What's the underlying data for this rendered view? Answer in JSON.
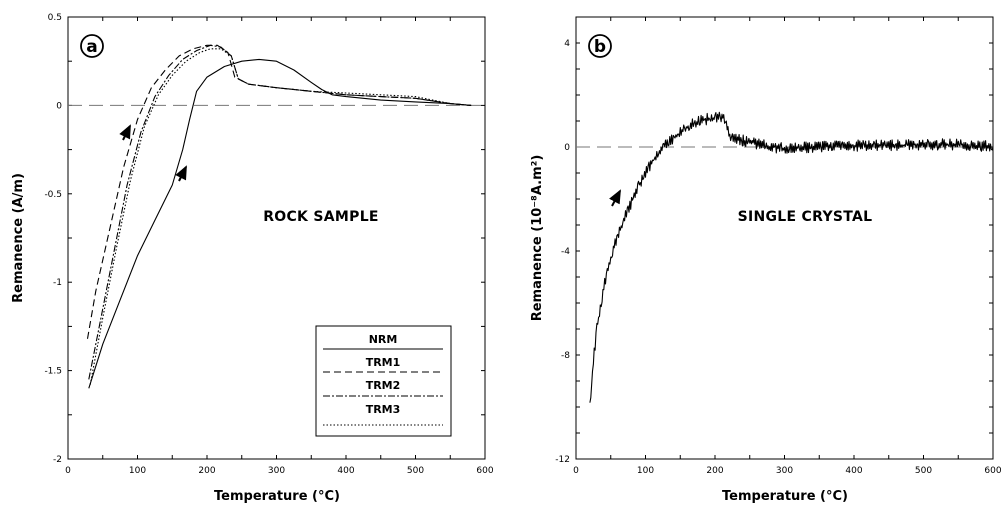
{
  "chart_data": [
    {
      "type": "line",
      "panel_label": "a",
      "annotation": "ROCK SAMPLE",
      "xlabel": "Temperature (°C)",
      "ylabel": "Remanence (A/m)",
      "xlim": [
        0,
        600
      ],
      "ylim": [
        -2,
        0.5
      ],
      "xticks": [
        0,
        100,
        200,
        300,
        400,
        500,
        600
      ],
      "yticks": [
        0.5,
        0,
        -0.5,
        -1,
        -1.5,
        -2
      ],
      "xtick_labels": [
        "0",
        "100",
        "200",
        "300",
        "400",
        "500",
        "600"
      ],
      "ytick_labels": [
        "0.5",
        "0",
        "-0.5",
        "-1",
        "-1.5",
        "-2"
      ],
      "zero_line": true,
      "legend": {
        "placement": "bottom-right",
        "entries": [
          "NRM",
          "TRM1",
          "TRM2",
          "TRM3"
        ]
      },
      "series": [
        {
          "name": "NRM",
          "style": "solid",
          "x": [
            30,
            50,
            75,
            100,
            125,
            150,
            165,
            175,
            185,
            200,
            225,
            250,
            275,
            300,
            325,
            350,
            365,
            380,
            400,
            450,
            500,
            550,
            580
          ],
          "y": [
            -1.6,
            -1.35,
            -1.1,
            -0.85,
            -0.65,
            -0.45,
            -0.25,
            -0.08,
            0.08,
            0.16,
            0.22,
            0.25,
            0.26,
            0.25,
            0.2,
            0.13,
            0.09,
            0.06,
            0.05,
            0.03,
            0.02,
            0.01,
            0
          ]
        },
        {
          "name": "TRM1",
          "style": "dashed",
          "x": [
            28,
            40,
            60,
            80,
            100,
            120,
            140,
            160,
            180,
            200,
            215,
            230,
            240,
            260,
            300,
            350,
            400,
            450,
            500,
            550,
            580
          ],
          "y": [
            -1.32,
            -1.05,
            -0.7,
            -0.35,
            -0.08,
            0.1,
            0.2,
            0.28,
            0.32,
            0.34,
            0.34,
            0.3,
            0.16,
            0.12,
            0.1,
            0.08,
            0.06,
            0.05,
            0.04,
            0.01,
            0
          ]
        },
        {
          "name": "TRM2",
          "style": "dash-dot",
          "x": [
            30,
            45,
            65,
            85,
            105,
            125,
            145,
            165,
            185,
            205,
            220,
            235,
            245,
            260,
            300,
            350,
            400,
            450,
            500,
            550,
            580
          ],
          "y": [
            -1.55,
            -1.25,
            -0.85,
            -0.45,
            -0.15,
            0.05,
            0.17,
            0.26,
            0.31,
            0.34,
            0.33,
            0.28,
            0.15,
            0.12,
            0.1,
            0.08,
            0.06,
            0.05,
            0.04,
            0.01,
            0
          ]
        },
        {
          "name": "TRM3",
          "style": "dotted",
          "x": [
            32,
            50,
            70,
            90,
            110,
            130,
            150,
            170,
            190,
            205,
            220,
            235,
            245,
            260,
            300,
            350,
            400,
            450,
            500,
            550,
            580
          ],
          "y": [
            -1.58,
            -1.2,
            -0.8,
            -0.42,
            -0.12,
            0.06,
            0.17,
            0.25,
            0.3,
            0.32,
            0.32,
            0.28,
            0.15,
            0.12,
            0.1,
            0.08,
            0.07,
            0.06,
            0.05,
            0.01,
            0
          ]
        }
      ]
    },
    {
      "type": "line",
      "panel_label": "b",
      "annotation": "SINGLE CRYSTAL",
      "xlabel": "Temperature (°C)",
      "ylabel": "Remanence (10⁻⁸A.m²)",
      "xlim": [
        0,
        600
      ],
      "ylim": [
        -12,
        5
      ],
      "xticks": [
        0,
        100,
        200,
        300,
        400,
        500,
        600
      ],
      "yticks": [
        4,
        0,
        -4,
        -8,
        -12
      ],
      "xtick_labels": [
        "0",
        "100",
        "200",
        "300",
        "400",
        "500",
        "600"
      ],
      "ytick_labels": [
        "4",
        "0",
        "-4",
        "-8",
        "-12"
      ],
      "zero_line": true,
      "series": [
        {
          "style": "solid-noisy",
          "x": [
            20,
            25,
            30,
            35,
            40,
            50,
            60,
            70,
            80,
            90,
            100,
            110,
            120,
            130,
            140,
            150,
            160,
            170,
            180,
            190,
            200,
            210,
            215,
            220,
            230,
            250,
            280,
            300,
            350,
            400,
            450,
            500,
            550,
            600
          ],
          "y": [
            -10,
            -8.2,
            -7,
            -6.2,
            -5.4,
            -4.3,
            -3.4,
            -2.7,
            -2.1,
            -1.5,
            -1.0,
            -0.55,
            -0.2,
            0.1,
            0.35,
            0.55,
            0.75,
            0.9,
            1.0,
            1.1,
            1.1,
            1.2,
            0.9,
            0.5,
            0.3,
            0.2,
            0.0,
            -0.05,
            0.0,
            0.05,
            0.05,
            0.1,
            0.1,
            0.0
          ]
        }
      ]
    }
  ]
}
